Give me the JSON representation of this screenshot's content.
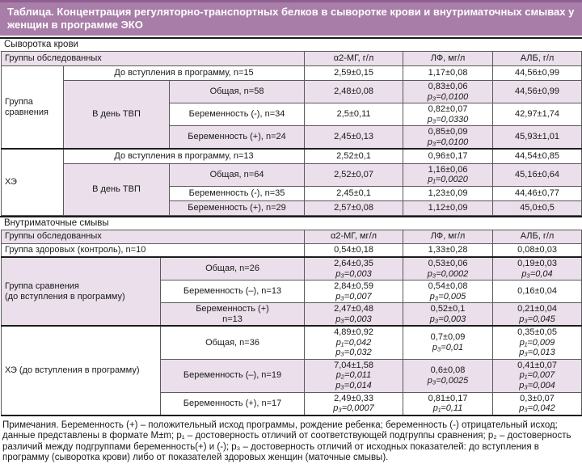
{
  "title": "Таблица. Концентрация регуляторно-транспортных белков в сыворотке крови и внутриматочных смывах у женщин в программе ЭКО",
  "colors": {
    "title-bg": "#a87ea9",
    "title-edge": "#8f5f91",
    "title-text": "#ffffff",
    "shade": "#eadfea",
    "border": "#5a5a5a",
    "border-strong": "#1c1c1c",
    "text": "#1a1a1a"
  },
  "serum": {
    "section_label": "Сыворотка крови",
    "columns": [
      "Группы обследованных",
      "α2-МГ, г/л",
      "ЛФ, мг/л",
      "АЛБ, г/л"
    ],
    "group1_label": "Группа сравнения",
    "group2_label": "ХЭ",
    "tvp_label": "В день ТВП",
    "rows": [
      {
        "label": "До вступления в программу, n=15",
        "a2": [
          "2,59±0,15"
        ],
        "lf": [
          "1,17±0,08"
        ],
        "alb": [
          "44,56±0,99"
        ]
      },
      {
        "label": "Общая, n=58",
        "a2": [
          "2,48±0,08"
        ],
        "lf": [
          "0,83±0,06",
          "p₃=0,0100"
        ],
        "alb": [
          "44,56±0,99"
        ]
      },
      {
        "label": "Беременность (-), n=34",
        "a2": [
          "2,5±0,11"
        ],
        "lf": [
          "0,82±0,07",
          "p₃=0,0330"
        ],
        "alb": [
          "42,97±1,74"
        ]
      },
      {
        "label": "Беременность (+), n=24",
        "a2": [
          "2,45±0,13"
        ],
        "lf": [
          "0,85±0,09",
          "p₃=0,0100"
        ],
        "alb": [
          "45,93±1,01"
        ]
      },
      {
        "label": "До вступления в программу, n=13",
        "a2": [
          "2,52±0,1"
        ],
        "lf": [
          "0,96±0,17"
        ],
        "alb": [
          "44,54±0,85"
        ]
      },
      {
        "label": "Общая, n=64",
        "a2": [
          "2,52±0,07"
        ],
        "lf": [
          "1,16±0,06",
          "p₁=0,0020"
        ],
        "alb": [
          "45,16±0,64"
        ]
      },
      {
        "label": "Беременность (-), n=35",
        "a2": [
          "2,45±0,1"
        ],
        "lf": [
          "1,23±0,09"
        ],
        "alb": [
          "44,46±0,77"
        ]
      },
      {
        "label": "Беременность (+), n=29",
        "a2": [
          "2,57±0,08"
        ],
        "lf": [
          "1,12±0,09"
        ],
        "alb": [
          "45,0±0,5"
        ]
      }
    ]
  },
  "washes": {
    "section_label": "Внутриматочные смывы",
    "columns": [
      "Группы обследованных",
      "α2-МГ, мг/л",
      "ЛФ, мг/л",
      "АЛБ, г/л"
    ],
    "group1_label": [
      "Группа сравнения",
      "(до вступления в программу)"
    ],
    "group2_label": [
      "ХЭ (до вступления в программу)"
    ],
    "rows": [
      {
        "label": [
          "Группа здоровых (контроль), n=10"
        ],
        "a2": [
          "0,54±0,18"
        ],
        "lf": [
          "1,33±0,28"
        ],
        "alb": [
          "0,08±0,03"
        ]
      },
      {
        "label": [
          "Общая, n=26"
        ],
        "a2": [
          "2,64±0,35",
          "p₃=0,003"
        ],
        "lf": [
          "0,53±0,06",
          "p₃=0,0002"
        ],
        "alb": [
          "0,19±0,03",
          "p₃=0,04"
        ]
      },
      {
        "label": [
          "Беременность (–), n=13"
        ],
        "a2": [
          "2,84±0,59",
          "p₃=0,007"
        ],
        "lf": [
          "0,54±0,08",
          "p₃=0,005"
        ],
        "alb": [
          "0,16±0,04"
        ]
      },
      {
        "label": [
          "Беременность (+)",
          "n=13"
        ],
        "a2": [
          "2,47±0,48",
          "p₃=0,003"
        ],
        "lf": [
          "0,52±0,1",
          "p₃=0,003"
        ],
        "alb": [
          "0,21±0,04",
          "p₃=0,045"
        ]
      },
      {
        "label": [
          "Общая, n=36"
        ],
        "a2": [
          "4,89±0,92",
          "p₁=0,042",
          "p₃=0,032"
        ],
        "lf": [
          "0,7±0,09",
          "p₃=0,01"
        ],
        "alb": [
          "0,35±0,05",
          "p₁=0,009",
          "p₃=0,013"
        ]
      },
      {
        "label": [
          "Беременность (–), n=19"
        ],
        "a2": [
          "7,04±1,58",
          "p₂=0,011",
          "p₃=0,014"
        ],
        "lf": [
          "0,6±0,08",
          "p₃=0,0025"
        ],
        "alb": [
          "0,41±0,07",
          "p₁=0,007",
          "p₃=0,004"
        ]
      },
      {
        "label": [
          "Беременность (+), n=17"
        ],
        "a2": [
          "2,49±0,33",
          "p₃=0,0007"
        ],
        "lf": [
          "0,81±0,17",
          "p₁=0,11"
        ],
        "alb": [
          "0,3±0,07",
          "p₃=0,042"
        ]
      }
    ]
  },
  "notes": {
    "text": "Примечания. Беременность (+) – положительный исход программы, рождение ребенка; беременность (-) отрицательный исход; данные представлены в формате M±m; p₁ – достоверность отличий от соответствующей подгруппы сравнения; p₂ – достоверность различий между подгруппами беременность(+) и (-); p₃ – достоверность отличий от исходных показателей: до вступления в программу (сыворотка крови) либо от показателей здоровых женщин (маточные смывы)."
  }
}
